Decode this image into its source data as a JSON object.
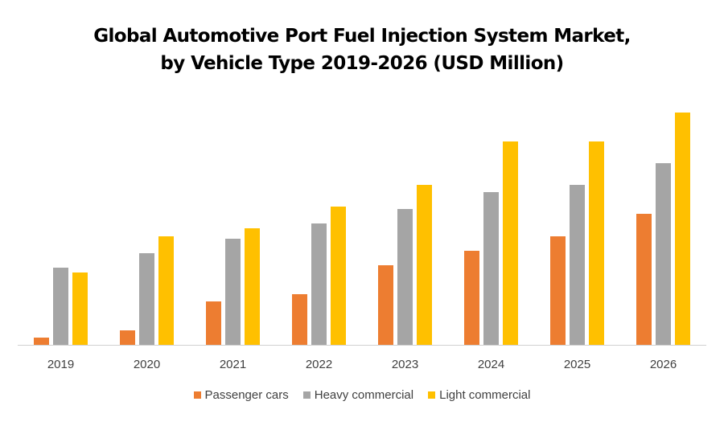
{
  "chart_data": {
    "type": "bar",
    "title_lines": [
      "Global Automotive Port Fuel Injection System Market,",
      "by Vehicle Type 2019-2026 (USD Million)"
    ],
    "categories": [
      "2019",
      "2020",
      "2021",
      "2022",
      "2023",
      "2024",
      "2025",
      "2026"
    ],
    "series": [
      {
        "name": "Passenger cars",
        "color": "#ED7D31",
        "values": [
          9,
          18,
          54,
          63,
          99,
          117,
          135,
          163
        ]
      },
      {
        "name": "Heavy commercial",
        "color": "#A5A5A5",
        "values": [
          96,
          114,
          132,
          151,
          169,
          190,
          199,
          226
        ]
      },
      {
        "name": "Light commercial",
        "color": "#FFC000",
        "values": [
          90,
          135,
          145,
          172,
          199,
          253,
          253,
          289
        ]
      }
    ],
    "ylim": [
      0,
      300
    ],
    "y_axis_shown": false,
    "grid": false,
    "legend_position": "bottom"
  }
}
